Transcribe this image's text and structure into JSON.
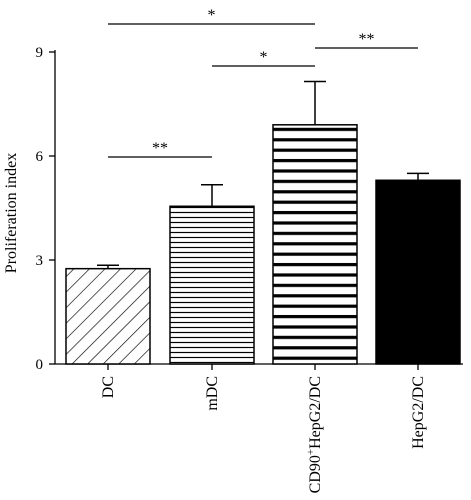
{
  "chart_data": {
    "type": "bar",
    "title": "",
    "xlabel": "",
    "ylabel": "Proliferation index",
    "ylim": [
      0,
      9
    ],
    "yticks": [
      0,
      3,
      6,
      9
    ],
    "grid": false,
    "categories": [
      "DC",
      "mDC",
      "CD90+HepG2/DC",
      "HepG2/DC"
    ],
    "values": [
      2.75,
      4.55,
      6.9,
      5.3
    ],
    "errors": [
      0.1,
      0.62,
      1.25,
      0.2
    ],
    "fills": [
      "diagonal-hatch",
      "thin-horizontal-lines",
      "thick-horizontal-lines",
      "solid-black"
    ],
    "significance": [
      {
        "from": "DC",
        "to": "mDC",
        "label": "**"
      },
      {
        "from": "mDC",
        "to": "CD90+HepG2/DC",
        "label": "*"
      },
      {
        "from": "DC",
        "to": "CD90+HepG2/DC",
        "label": "*"
      },
      {
        "from": "CD90+HepG2/DC",
        "to": "HepG2/DC",
        "label": "**"
      }
    ]
  }
}
